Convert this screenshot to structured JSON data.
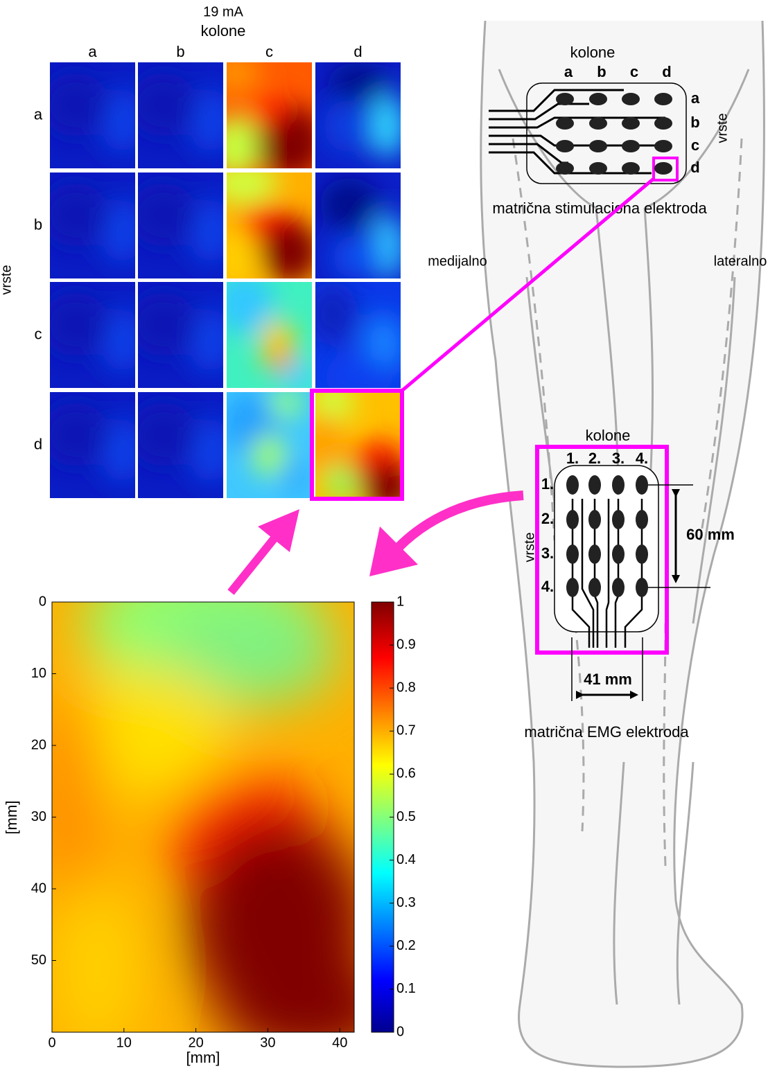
{
  "grid": {
    "title": "19 mA",
    "col_title": "kolone",
    "row_title": "vrste",
    "columns": [
      "a",
      "b",
      "c",
      "d"
    ],
    "rows": [
      "a",
      "b",
      "c",
      "d"
    ]
  },
  "stim_electrode": {
    "col_title": "kolone",
    "columns": [
      "a",
      "b",
      "c",
      "d"
    ],
    "row_title": "vrste",
    "rows": [
      "a",
      "b",
      "c",
      "d"
    ],
    "caption": "matrična stimulaciona elektroda"
  },
  "sides": {
    "medial": "medijalno",
    "lateral": "lateralno"
  },
  "emg_electrode": {
    "col_title": "kolone",
    "columns": [
      "1.",
      "2.",
      "3.",
      "4."
    ],
    "row_title": "vrste",
    "rows": [
      "1.",
      "2.",
      "3.",
      "4."
    ],
    "height": "60 mm",
    "width": "41 mm",
    "caption": "matrična EMG elektroda"
  },
  "map": {
    "xlabel": "[mm]",
    "ylabel": "[mm]",
    "xlim": [
      0,
      42
    ],
    "ylim": [
      0,
      60
    ],
    "xticks": [
      0,
      10,
      20,
      30,
      40
    ],
    "yticks": [
      0,
      10,
      20,
      30,
      40,
      50
    ],
    "colorbar": {
      "lim": [
        0,
        1
      ],
      "ticks": [
        0,
        0.1,
        0.2,
        0.3,
        0.4,
        0.5,
        0.6,
        0.7,
        0.8,
        0.9,
        1
      ]
    }
  }
}
